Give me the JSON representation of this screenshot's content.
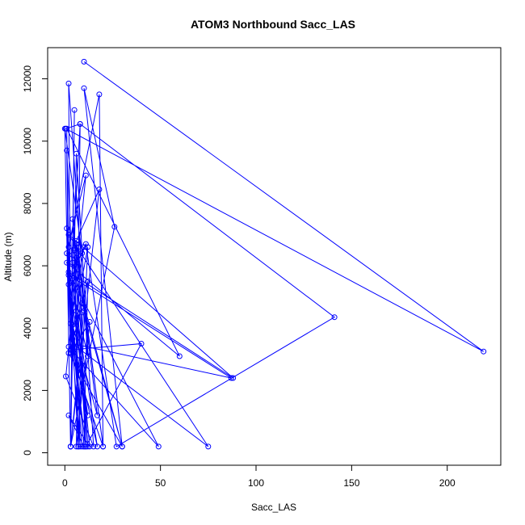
{
  "chart_data": {
    "type": "line",
    "title": "ATOM3 Northbound Sacc_LAS",
    "xlabel": "Sacc_LAS",
    "ylabel": "Altitude (m)",
    "xlim": [
      -9,
      228
    ],
    "ylim": [
      -400,
      13000
    ],
    "xticks": [
      0,
      50,
      100,
      150,
      200
    ],
    "yticks": [
      0,
      2000,
      4000,
      6000,
      8000,
      10000,
      12000
    ],
    "grid": false,
    "legend": "none",
    "color": "#0000ff",
    "marker": "open-circle",
    "series": [
      {
        "x": [
          10,
          219,
          0.5,
          8,
          141,
          27,
          11,
          9,
          0,
          3,
          26,
          10,
          30,
          9,
          4,
          6,
          12,
          4,
          1,
          3,
          2,
          12,
          1,
          60,
          1,
          2,
          49,
          2,
          88,
          2,
          75,
          4,
          87,
          2,
          12,
          4,
          2,
          18,
          20,
          6,
          18,
          3,
          6,
          15,
          0.5,
          11,
          1,
          10,
          12,
          3,
          40,
          11,
          7,
          10,
          3,
          5,
          4,
          3,
          1,
          7,
          5,
          9,
          7,
          12,
          2,
          30,
          4,
          8,
          6,
          13,
          3,
          20,
          6,
          17,
          4,
          9,
          2,
          10,
          3,
          8,
          5,
          11,
          4,
          17,
          6,
          13,
          2,
          10
        ],
        "y": [
          12550,
          3250,
          10400,
          10550,
          4350,
          200,
          6700,
          6400,
          10400,
          200,
          7250,
          11700,
          200,
          4800,
          7500,
          6250,
          200,
          5600,
          9700,
          3200,
          11850,
          3100,
          6100,
          3100,
          10400,
          3400,
          200,
          5800,
          2400,
          7000,
          200,
          3500,
          2400,
          5700,
          1200,
          3400,
          6600,
          11500,
          200,
          6800,
          8450,
          200,
          9600,
          200,
          2450,
          8900,
          6400,
          200,
          5500,
          3300,
          3500,
          200,
          6600,
          4550,
          200,
          11000,
          6350,
          3300,
          7200,
          200,
          6500,
          4500,
          200,
          6600,
          3200,
          200,
          6100,
          10550,
          200,
          4200,
          3200,
          200,
          6700,
          1200,
          4100,
          200,
          5400,
          6600,
          4150,
          200,
          6550,
          200,
          3650,
          200,
          4550,
          200,
          1200,
          200
        ]
      }
    ]
  }
}
